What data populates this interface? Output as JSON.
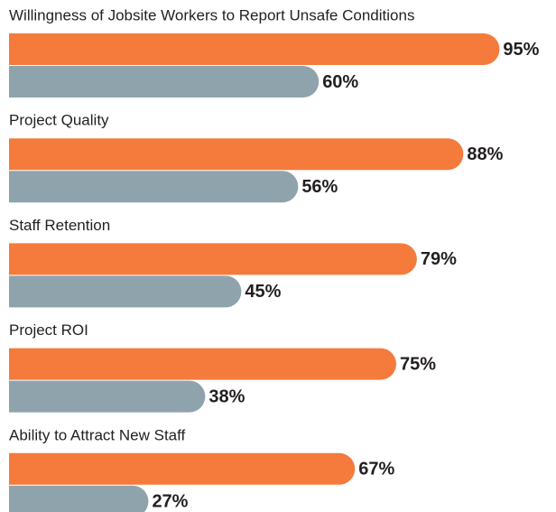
{
  "chart_data": {
    "type": "bar",
    "orientation": "horizontal",
    "categories": [
      "Willingness of Jobsite Workers to Report Unsafe Conditions",
      "Project Quality",
      "Staff Retention",
      "Project ROI",
      "Ability to Attract New Staff"
    ],
    "series": [
      {
        "color": "#f47b3c",
        "values": [
          95,
          88,
          79,
          75,
          67
        ],
        "value_labels": [
          "95%",
          "88%",
          "79%",
          "75%",
          "67%"
        ]
      },
      {
        "color": "#8fa3ad",
        "values": [
          60,
          56,
          45,
          38,
          27
        ],
        "value_labels": [
          "60%",
          "56%",
          "45%",
          "38%",
          "27%"
        ]
      }
    ]
  }
}
